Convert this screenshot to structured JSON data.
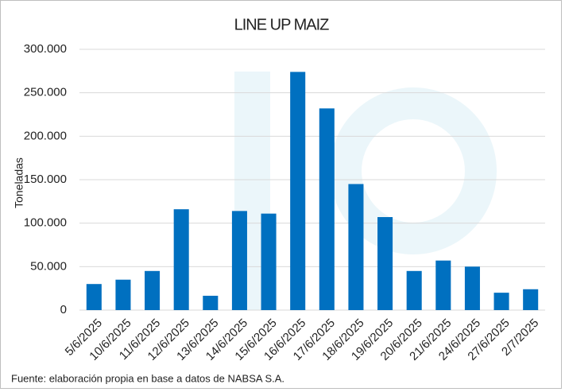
{
  "chart_data": {
    "type": "bar",
    "title": "LINE UP MAIZ",
    "y_label": "Toneladas",
    "source": "Fuente: elaboración propia en base a datos de NABSA S.A.",
    "categories": [
      "5/6/2025",
      "10/6/2025",
      "11/6/2025",
      "12/6/2025",
      "13/6/2025",
      "14/6/2025",
      "15/6/2025",
      "16/6/2025",
      "17/6/2025",
      "18/6/2025",
      "19/6/2025",
      "20/6/2025",
      "21/6/2025",
      "24/6/2025",
      "27/6/2025",
      "2/7/2025"
    ],
    "values": [
      30000,
      35000,
      45000,
      116000,
      16500,
      114000,
      111000,
      274000,
      232000,
      145000,
      107000,
      45000,
      57000,
      50000,
      20000,
      24000
    ],
    "color": "#0070c0",
    "ylim": [
      0,
      300000
    ],
    "yticks": [
      0,
      {
        "value": 50000,
        "label": "50.000"
      },
      {
        "value": 100000,
        "label": "100.000"
      },
      {
        "value": 150000,
        "label": "150.000"
      },
      {
        "value": 200000,
        "label": "200.000"
      },
      {
        "value": 250000,
        "label": "250.000"
      },
      {
        "value": 300000,
        "label": "300.000"
      }
    ],
    "grid": true
  }
}
